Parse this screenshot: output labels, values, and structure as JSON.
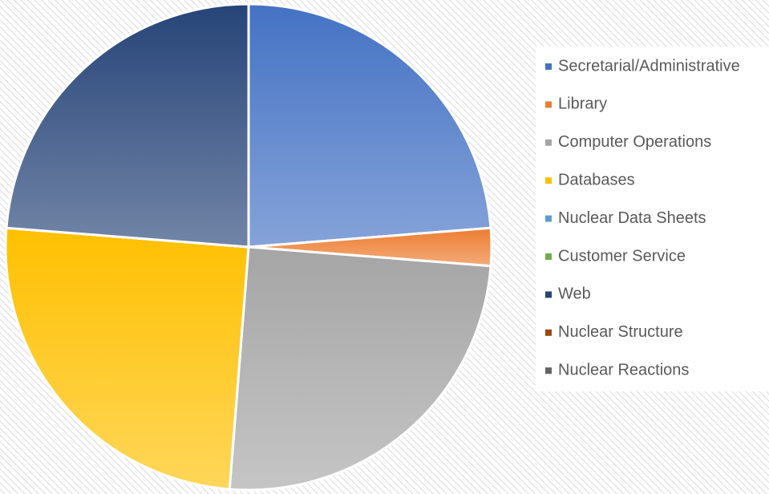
{
  "chart_data": {
    "type": "pie",
    "categories": [
      "Secretarial/Administrative",
      "Library",
      "Computer Operations",
      "Databases",
      "Nuclear Data Sheets",
      "Customer Service",
      "Web",
      "Nuclear Structure",
      "Nuclear Reactions"
    ],
    "values": [
      23.75,
      2.5,
      25,
      25,
      0,
      0,
      23.75,
      0,
      0
    ],
    "colors": [
      "#4472c4",
      "#ed7d31",
      "#a5a5a5",
      "#ffc000",
      "#5b9bd5",
      "#70ad47",
      "#264478",
      "#9e480e",
      "#636363"
    ],
    "legend": "right"
  }
}
